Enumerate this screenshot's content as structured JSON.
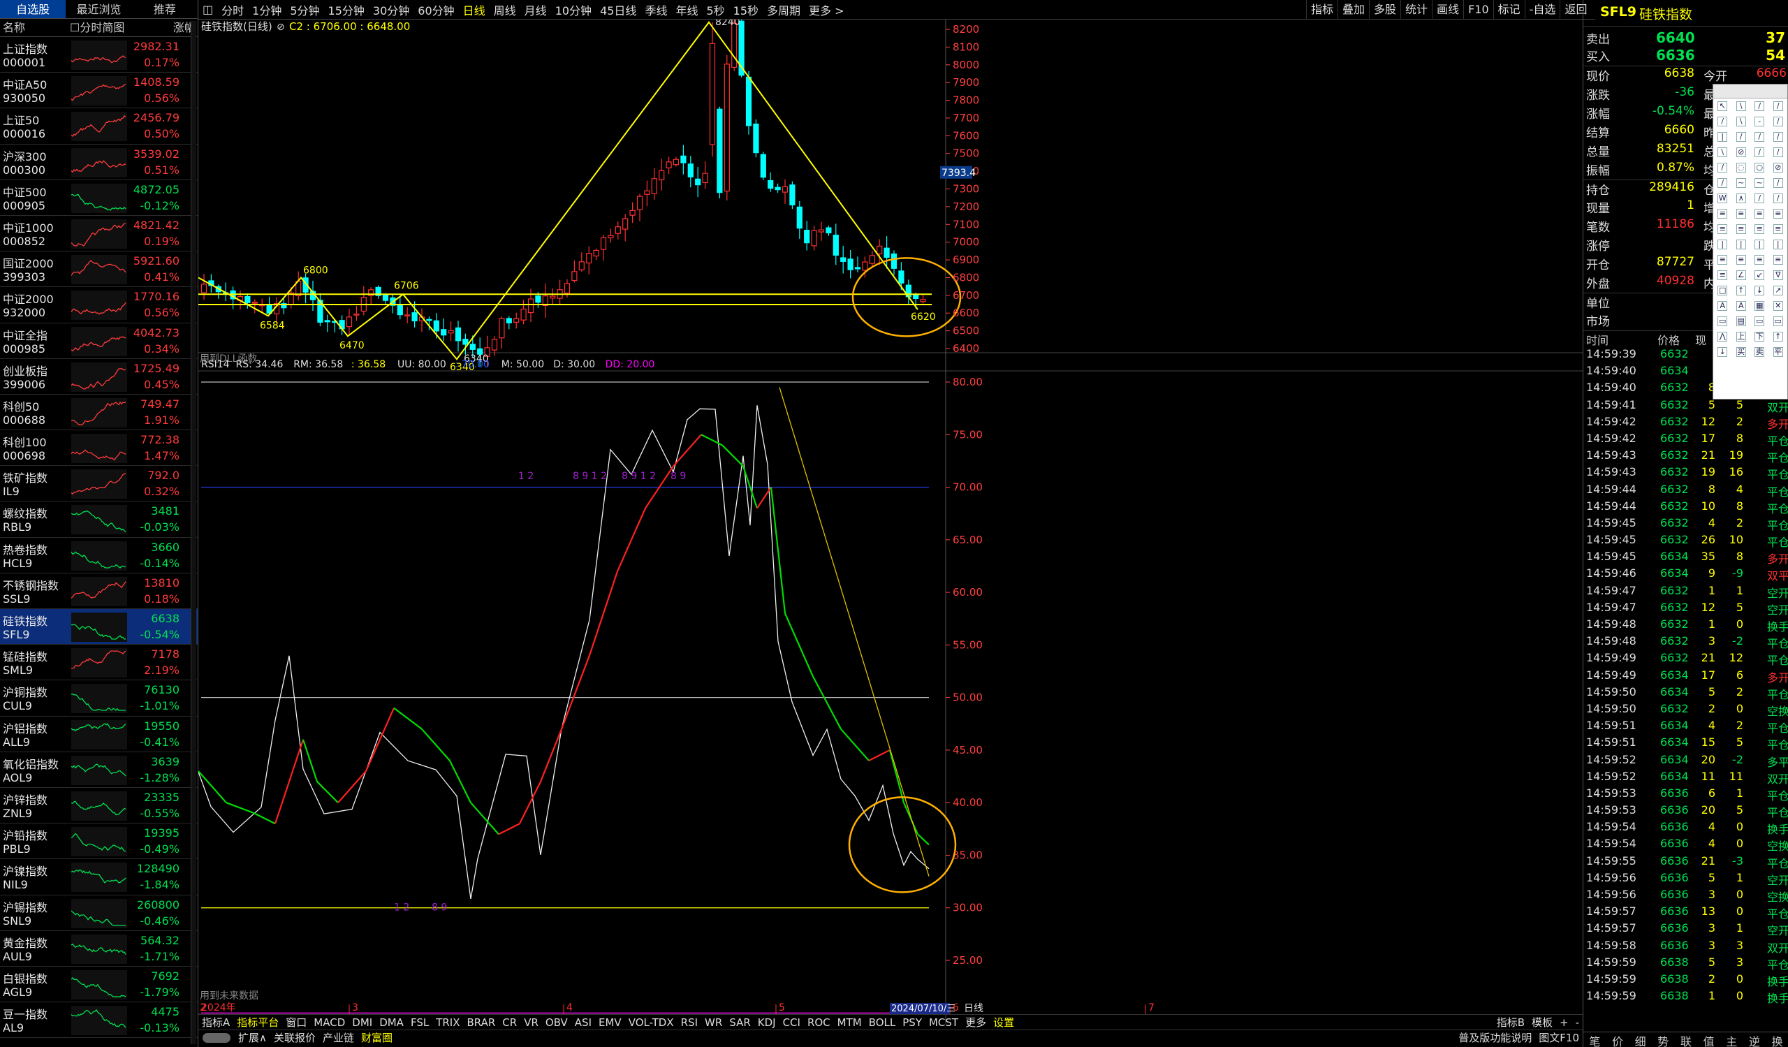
{
  "left_tabs": [
    "自选股",
    "最近浏览",
    "推荐"
  ],
  "left_header": {
    "name": "名称",
    "time": "分时简图",
    "pct": "涨幅"
  },
  "watchlist": [
    {
      "name": "上证指数",
      "code": "000001",
      "price": "2982.31",
      "pct": "0.17%",
      "up": true
    },
    {
      "name": "中证A50",
      "code": "930050",
      "price": "1408.59",
      "pct": "0.56%",
      "up": true
    },
    {
      "name": "上证50",
      "code": "000016",
      "price": "2456.79",
      "pct": "0.50%",
      "up": true
    },
    {
      "name": "沪深300",
      "code": "000300",
      "price": "3539.02",
      "pct": "0.51%",
      "up": true
    },
    {
      "name": "中证500",
      "code": "000905",
      "price": "4872.05",
      "pct": "-0.12%",
      "up": false
    },
    {
      "name": "中证1000",
      "code": "000852",
      "price": "4821.42",
      "pct": "0.19%",
      "up": true
    },
    {
      "name": "国证2000",
      "code": "399303",
      "price": "5921.60",
      "pct": "0.41%",
      "up": true
    },
    {
      "name": "中证2000",
      "code": "932000",
      "price": "1770.16",
      "pct": "0.56%",
      "up": true
    },
    {
      "name": "中证全指",
      "code": "000985",
      "price": "4042.73",
      "pct": "0.34%",
      "up": true
    },
    {
      "name": "创业板指",
      "code": "399006",
      "price": "1725.49",
      "pct": "0.45%",
      "up": true
    },
    {
      "name": "科创50",
      "code": "000688",
      "price": "749.47",
      "pct": "1.91%",
      "up": true
    },
    {
      "name": "科创100",
      "code": "000698",
      "price": "772.38",
      "pct": "1.47%",
      "up": true
    },
    {
      "name": "铁矿指数",
      "code": "IL9",
      "price": "792.0",
      "pct": "0.32%",
      "up": true
    },
    {
      "name": "螺纹指数",
      "code": "RBL9",
      "price": "3481",
      "pct": "-0.03%",
      "up": false
    },
    {
      "name": "热卷指数",
      "code": "HCL9",
      "price": "3660",
      "pct": "-0.14%",
      "up": false
    },
    {
      "name": "不锈钢指数",
      "code": "SSL9",
      "price": "13810",
      "pct": "0.18%",
      "up": true
    },
    {
      "name": "硅铁指数",
      "code": "SFL9",
      "price": "6638",
      "pct": "-0.54%",
      "up": false,
      "selected": true
    },
    {
      "name": "锰硅指数",
      "code": "SML9",
      "price": "7178",
      "pct": "2.19%",
      "up": true
    },
    {
      "name": "沪铜指数",
      "code": "CUL9",
      "price": "76130",
      "pct": "-1.01%",
      "up": false
    },
    {
      "name": "沪铝指数",
      "code": "ALL9",
      "price": "19550",
      "pct": "-0.41%",
      "up": false
    },
    {
      "name": "氧化铝指数",
      "code": "AOL9",
      "price": "3639",
      "pct": "-1.28%",
      "up": false
    },
    {
      "name": "沪锌指数",
      "code": "ZNL9",
      "price": "23335",
      "pct": "-0.55%",
      "up": false
    },
    {
      "name": "沪铅指数",
      "code": "PBL9",
      "price": "19395",
      "pct": "-0.49%",
      "up": false
    },
    {
      "name": "沪镍指数",
      "code": "NIL9",
      "price": "128490",
      "pct": "-1.84%",
      "up": false
    },
    {
      "name": "沪锡指数",
      "code": "SNL9",
      "price": "260800",
      "pct": "-0.46%",
      "up": false
    },
    {
      "name": "黄金指数",
      "code": "AUL9",
      "price": "564.32",
      "pct": "-1.71%",
      "up": false
    },
    {
      "name": "白银指数",
      "code": "AGL9",
      "price": "7692",
      "pct": "-1.79%",
      "up": false
    },
    {
      "name": "豆一指数",
      "code": "AL9",
      "price": "4475",
      "pct": "-0.13%",
      "up": false
    }
  ],
  "periods": [
    "分时",
    "1分钟",
    "5分钟",
    "15分钟",
    "30分钟",
    "60分钟",
    "日线",
    "周线",
    "月线",
    "10分钟",
    "45日线",
    "季线",
    "年线",
    "5秒",
    "15秒",
    "多周期",
    "更多 >"
  ],
  "period_active": "日线",
  "right_tools": [
    "指标",
    "叠加",
    "多股",
    "统计",
    "画线",
    "F10",
    "标记",
    "-自选",
    "返回"
  ],
  "chart_title": "硅铁指数(日线)",
  "chart_sub": "C2 : 6706.00 : 6648.00",
  "price_ticks": [
    "8200",
    "8100",
    "8000",
    "7900",
    "7800",
    "7700",
    "7600",
    "7500",
    "7400",
    "7300",
    "7200",
    "7100",
    "7000",
    "6900",
    "6800",
    "6700",
    "6600",
    "6500",
    "6400"
  ],
  "price_marker": "7393.4",
  "annotations": {
    "hi": "8240",
    "a": "6800",
    "b": "6584",
    "c": "6706",
    "d": "6470",
    "e": "6340",
    "e2": "6340",
    "f": "6620"
  },
  "dll_note": "用到DLL函数",
  "future_note": "用到未来数据",
  "rsi_header": {
    "label": "RSI14",
    "rs": "RS: 34.46",
    "rm": "RM: 36.58",
    "rm2": ": 36.58",
    "uu": "UU: 80.00",
    "l": ": 70.00",
    "m": "M: 50.00",
    "d": "D: 30.00",
    "dd": "DD: 20.00"
  },
  "rsi_ticks": [
    "80.00",
    "75.00",
    "70.00",
    "65.00",
    "60.00",
    "55.00",
    "50.00",
    "45.00",
    "40.00",
    "35.00",
    "30.00",
    "25.00"
  ],
  "rsi_labels": [
    "1 2",
    "8 9 1 2",
    "8 9 1 2",
    "8 9",
    "1 2",
    "8 9"
  ],
  "x_axis": {
    "start": "2024年",
    "months": [
      "2",
      "3",
      "4",
      "5",
      "6",
      "7"
    ],
    "cursor_date": "2024/07/10/三",
    "period": "日线"
  },
  "indicator_tabs": [
    "指标A",
    "指标平台",
    "窗口",
    "MACD",
    "DMI",
    "DMA",
    "FSL",
    "TRIX",
    "BRAR",
    "CR",
    "VR",
    "OBV",
    "ASI",
    "EMV",
    "VOL-TDX",
    "RSI",
    "WR",
    "SAR",
    "KDJ",
    "CCI",
    "ROC",
    "MTM",
    "BOLL",
    "PSY",
    "MCST",
    "更多",
    "设置"
  ],
  "bottom_tabs": [
    "扩展∧",
    "关联报价",
    "产业链",
    "财富圈"
  ],
  "bottom_right": [
    "指标B",
    "模板",
    "+",
    "-"
  ],
  "bottom_right2": [
    "普及版功能说明",
    "图文F10"
  ],
  "info": {
    "code": "SFL9",
    "name": "硅铁指数",
    "sell_label": "卖出",
    "sell": "6640",
    "sell_vol": "37",
    "buy_label": "买入",
    "buy": "6636",
    "buy_vol": "54",
    "rows": [
      {
        "l": "现价",
        "v": "6638",
        "l2": "今开",
        "v2": "6666"
      },
      {
        "l": "涨跌",
        "v": "-36",
        "l2": "最高",
        "v2": ""
      },
      {
        "l": "涨幅",
        "v": "-0.54%",
        "l2": "最低",
        "v2": ""
      },
      {
        "l": "结算",
        "v": "6660",
        "l2": "昨结",
        "v2": ""
      },
      {
        "l": "总量",
        "v": "83251",
        "l2": "总金",
        "v2": ""
      },
      {
        "l": "振幅",
        "v": "0.87%",
        "l2": "均价",
        "v2": ""
      },
      {
        "l": "持仓",
        "v": "289416",
        "l2": "仓差",
        "v2": ""
      },
      {
        "l": "现量",
        "v": "1",
        "l2": "增仓",
        "v2": ""
      },
      {
        "l": "笔数",
        "v": "11186",
        "l2": "均量",
        "v2": ""
      },
      {
        "l": "涨停",
        "v": "",
        "l2": "跌停",
        "v2": ""
      },
      {
        "l": "开仓",
        "v": "87727",
        "l2": "平仓",
        "v2": ""
      },
      {
        "l": "外盘",
        "v": "40928",
        "l2": "内盘",
        "v2": ""
      },
      {
        "l": "单位",
        "v": "",
        "l2": "",
        "v2": ""
      },
      {
        "l": "市场",
        "v": "",
        "l2": "",
        "v2": ""
      }
    ],
    "tick_header": [
      "时间",
      "价格",
      "现"
    ],
    "ticks": [
      [
        "14:59:39",
        "6632",
        "",
        "",
        ""
      ],
      [
        "14:59:40",
        "6634",
        "",
        "",
        ""
      ],
      [
        "14:59:40",
        "6632",
        "8",
        "1",
        "空开"
      ],
      [
        "14:59:41",
        "6632",
        "5",
        "5",
        "双开"
      ],
      [
        "14:59:42",
        "6632",
        "12",
        "2",
        "多开"
      ],
      [
        "14:59:42",
        "6632",
        "17",
        "8",
        "平仓"
      ],
      [
        "14:59:43",
        "6632",
        "21",
        "19",
        "平仓"
      ],
      [
        "14:59:43",
        "6632",
        "19",
        "16",
        "平仓"
      ],
      [
        "14:59:44",
        "6632",
        "8",
        "4",
        "平仓"
      ],
      [
        "14:59:44",
        "6632",
        "10",
        "8",
        "平仓"
      ],
      [
        "14:59:45",
        "6632",
        "4",
        "2",
        "平仓"
      ],
      [
        "14:59:45",
        "6632",
        "26",
        "10",
        "平仓"
      ],
      [
        "14:59:45",
        "6634",
        "35",
        "8",
        "多开"
      ],
      [
        "14:59:46",
        "6634",
        "9",
        "-9",
        "双平"
      ],
      [
        "14:59:47",
        "6632",
        "1",
        "1",
        "空开"
      ],
      [
        "14:59:47",
        "6632",
        "12",
        "5",
        "空开"
      ],
      [
        "14:59:48",
        "6632",
        "1",
        "0",
        "换手"
      ],
      [
        "14:59:48",
        "6632",
        "3",
        "-2",
        "平仓"
      ],
      [
        "14:59:49",
        "6632",
        "21",
        "12",
        "平仓"
      ],
      [
        "14:59:49",
        "6634",
        "17",
        "6",
        "多开"
      ],
      [
        "14:59:50",
        "6634",
        "5",
        "2",
        "平仓"
      ],
      [
        "14:59:50",
        "6632",
        "2",
        "0",
        "空换"
      ],
      [
        "14:59:51",
        "6634",
        "4",
        "2",
        "平仓"
      ],
      [
        "14:59:51",
        "6634",
        "15",
        "5",
        "平仓"
      ],
      [
        "14:59:52",
        "6634",
        "20",
        "-2",
        "多平"
      ],
      [
        "14:59:52",
        "6634",
        "11",
        "11",
        "双开"
      ],
      [
        "14:59:53",
        "6636",
        "6",
        "1",
        "平仓"
      ],
      [
        "14:59:53",
        "6636",
        "20",
        "5",
        "平仓"
      ],
      [
        "14:59:54",
        "6636",
        "4",
        "0",
        "换手"
      ],
      [
        "14:59:54",
        "6636",
        "4",
        "0",
        "空换"
      ],
      [
        "14:59:55",
        "6636",
        "21",
        "-3",
        "平仓"
      ],
      [
        "14:59:56",
        "6636",
        "5",
        "1",
        "空开"
      ],
      [
        "14:59:56",
        "6636",
        "3",
        "0",
        "空换"
      ],
      [
        "14:59:57",
        "6636",
        "13",
        "0",
        "平仓"
      ],
      [
        "14:59:57",
        "6636",
        "3",
        "1",
        "空开"
      ],
      [
        "14:59:58",
        "6636",
        "3",
        "3",
        "双开"
      ],
      [
        "14:59:59",
        "6638",
        "5",
        "3",
        "平仓"
      ],
      [
        "14:59:59",
        "6638",
        "2",
        "0",
        "换手"
      ],
      [
        "14:59:59",
        "6638",
        "1",
        "0",
        "换手"
      ]
    ],
    "bottom_tabs": [
      "笔",
      "价",
      "细",
      "势",
      "联",
      "值",
      "主",
      "逆",
      "换"
    ]
  },
  "drawing_tools": [
    "↖",
    "\\",
    "/",
    "/",
    "/",
    "\\",
    "-",
    "/",
    "|",
    "/",
    "/",
    "/",
    "\\",
    "⊘",
    "/",
    "/",
    "/",
    "◌",
    "○",
    "⊘",
    "/",
    "~",
    "~",
    "/",
    "W",
    "∧",
    "/",
    "/",
    "≡",
    "≡",
    "≡",
    "≡",
    "≡",
    "≡",
    "≡",
    "≡",
    "|",
    "|",
    "|",
    "|",
    "≡",
    "≡",
    "≡",
    "≡",
    "≡",
    "∠",
    "↙",
    "∇",
    "□",
    "↑",
    "↓",
    "↗",
    "A",
    "A",
    "▦",
    "✕",
    "▭",
    "▤",
    "▭",
    "▭",
    "⋀",
    "上",
    "下",
    "↑",
    "↓",
    "买",
    "卖",
    "平"
  ]
}
